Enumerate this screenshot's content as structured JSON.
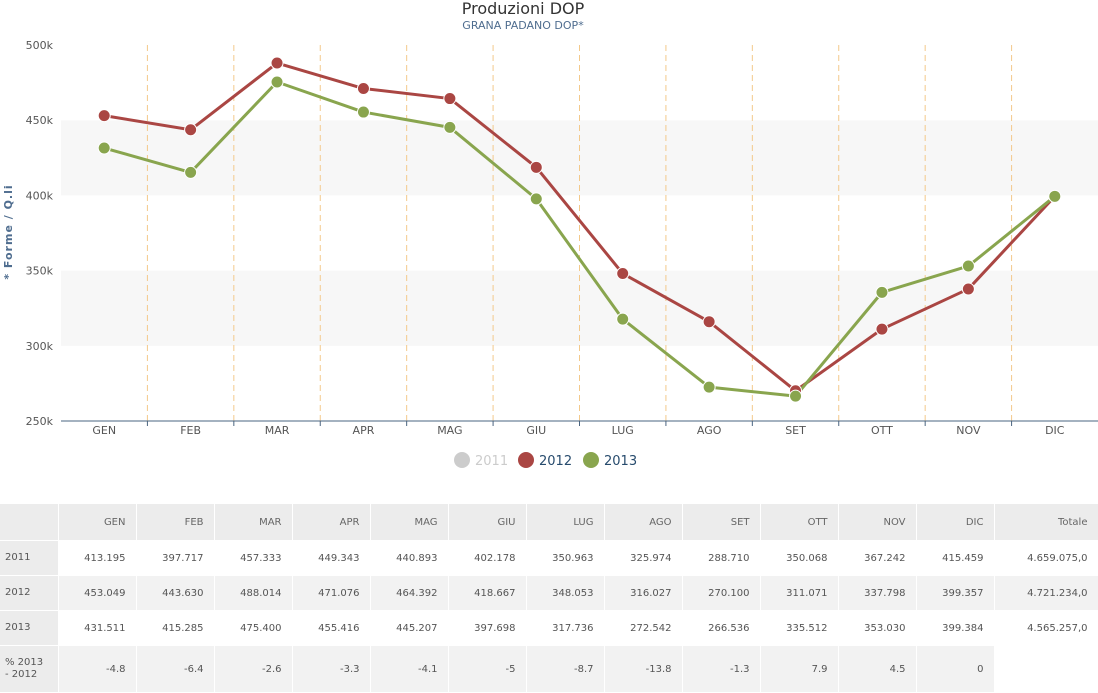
{
  "chart_data": {
    "type": "line",
    "title": "Produzioni DOP",
    "subtitle": "GRANA PADANO DOP*",
    "ylabel": "* Forme / Q.li",
    "xlabel": "",
    "categories": [
      "GEN",
      "FEB",
      "MAR",
      "APR",
      "MAG",
      "GIU",
      "LUG",
      "AGO",
      "SET",
      "OTT",
      "NOV",
      "DIC"
    ],
    "ylim": [
      250000,
      500000
    ],
    "yticks": [
      250000,
      300000,
      350000,
      400000,
      450000,
      500000
    ],
    "ytick_labels": [
      "250k",
      "300k",
      "350k",
      "400k",
      "450k",
      "500k"
    ],
    "grid": "alternating horizontal bands, dashed vertical lines",
    "legend_position": "bottom-center",
    "series": [
      {
        "name": "2011",
        "visible": false,
        "color": "#cccccc",
        "values": [
          413195,
          397717,
          457333,
          449343,
          440893,
          402178,
          350963,
          325974,
          288710,
          350068,
          367242,
          415459
        ]
      },
      {
        "name": "2012",
        "visible": true,
        "color": "#aa4643",
        "values": [
          453049,
          443630,
          488014,
          471076,
          464392,
          418667,
          348053,
          316027,
          270100,
          311071,
          337798,
          399357
        ]
      },
      {
        "name": "2013",
        "visible": true,
        "color": "#89a54e",
        "values": [
          431511,
          415285,
          475400,
          455416,
          445207,
          397698,
          317736,
          272542,
          266536,
          335512,
          353030,
          399384
        ]
      }
    ]
  },
  "table": {
    "headers": [
      "",
      "GEN",
      "FEB",
      "MAR",
      "APR",
      "MAG",
      "GIU",
      "LUG",
      "AGO",
      "SET",
      "OTT",
      "NOV",
      "DIC",
      "Totale"
    ],
    "rows": [
      {
        "label": "2011",
        "cells": [
          "413.195",
          "397.717",
          "457.333",
          "449.343",
          "440.893",
          "402.178",
          "350.963",
          "325.974",
          "288.710",
          "350.068",
          "367.242",
          "415.459",
          "4.659.075,0"
        ]
      },
      {
        "label": "2012",
        "cells": [
          "453.049",
          "443.630",
          "488.014",
          "471.076",
          "464.392",
          "418.667",
          "348.053",
          "316.027",
          "270.100",
          "311.071",
          "337.798",
          "399.357",
          "4.721.234,0"
        ]
      },
      {
        "label": "2013",
        "cells": [
          "431.511",
          "415.285",
          "475.400",
          "455.416",
          "445.207",
          "397.698",
          "317.736",
          "272.542",
          "266.536",
          "335.512",
          "353.030",
          "399.384",
          "4.565.257,0"
        ]
      },
      {
        "label": "% 2013 - 2012",
        "cells": [
          "-4.8",
          "-6.4",
          "-2.6",
          "-3.3",
          "-4.1",
          "-5",
          "-8.7",
          "-13.8",
          "-1.3",
          "7.9",
          "4.5",
          "0",
          ""
        ]
      }
    ]
  }
}
